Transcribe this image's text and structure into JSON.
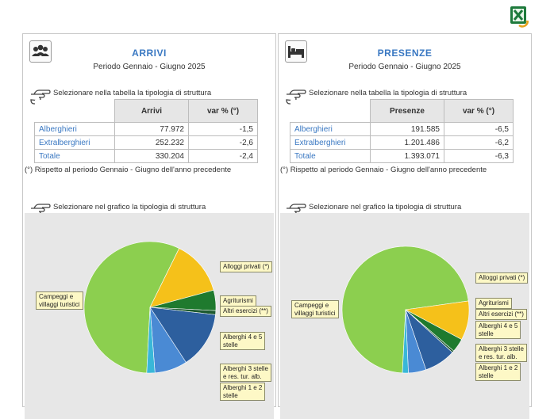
{
  "icons": {
    "export": "excel-export-icon",
    "arrivi": "people-icon",
    "presenze": "bed-icon",
    "hint": "pointing-hand-icon"
  },
  "colors": {
    "accent": "#3a78c2",
    "campeggi": "#8ccf4f",
    "alloggi": "#f5c11a",
    "agriturismi": "#1f7a2e",
    "altri": "#1d5a30",
    "alb45": "#2d5f9e",
    "alb3": "#4a8ad4",
    "alb12": "#39b7d8"
  },
  "panels": {
    "arrivi": {
      "title": "ARRIVI",
      "period": "Periodo Gennaio - Giugno 2025",
      "table_hint": "Selezionare nella tabella la tipologia di struttura",
      "headers": [
        "Arrivi",
        "var % (°)"
      ],
      "rows": [
        {
          "label": "Alberghieri",
          "value": "77.972",
          "var": "-1,5"
        },
        {
          "label": "Extralberghieri",
          "value": "252.232",
          "var": "-2,6"
        },
        {
          "label": "Totale",
          "value": "330.204",
          "var": "-2,4"
        }
      ],
      "footnote": "(°) Rispetto al periodo Gennaio - Giugno dell'anno precedente",
      "chart_hint": "Selezionare nel grafico la tipologia di struttura"
    },
    "presenze": {
      "title": "PRESENZE",
      "period": "Periodo Gennaio - Giugno 2025",
      "table_hint": "Selezionare nella tabella la tipologia di struttura",
      "headers": [
        "Presenze",
        "var % (°)"
      ],
      "rows": [
        {
          "label": "Alberghieri",
          "value": "191.585",
          "var": "-6,5"
        },
        {
          "label": "Extralberghieri",
          "value": "1.201.486",
          "var": "-6,2"
        },
        {
          "label": "Totale",
          "value": "1.393.071",
          "var": "-6,3"
        }
      ],
      "footnote": "(°) Rispetto al periodo Gennaio - Giugno dell'anno precedente",
      "chart_hint": "Selezionare nel grafico la tipologia di struttura"
    }
  },
  "chart_data": [
    {
      "type": "pie",
      "slices": [
        {
          "label": "Campeggi e villaggi turistici",
          "value": 56.5,
          "color": "#8ccf4f"
        },
        {
          "label": "Alloggi privati (*)",
          "value": 13.5,
          "color": "#f5c11a"
        },
        {
          "label": "Agriturismi",
          "value": 5.0,
          "color": "#1f7a2e"
        },
        {
          "label": "Altri esercizi (**)",
          "value": 1.0,
          "color": "#1d5a30"
        },
        {
          "label": "Alberghi 4 e 5 stelle",
          "value": 14.0,
          "color": "#2d5f9e"
        },
        {
          "label": "Alberghi 3 stelle e res. tur. alb.",
          "value": 8.0,
          "color": "#4a8ad4"
        },
        {
          "label": "Alberghi 1 e 2 stelle",
          "value": 2.0,
          "color": "#39b7d8"
        }
      ]
    },
    {
      "type": "pie",
      "slices": [
        {
          "label": "Campeggi e villaggi turistici",
          "value": 72.0,
          "color": "#8ccf4f"
        },
        {
          "label": "Alloggi privati (*)",
          "value": 10.0,
          "color": "#f5c11a"
        },
        {
          "label": "Agriturismi",
          "value": 3.5,
          "color": "#1f7a2e"
        },
        {
          "label": "Altri esercizi (**)",
          "value": 0.5,
          "color": "#1d5a30"
        },
        {
          "label": "Alberghi 4 e 5 stelle",
          "value": 8.0,
          "color": "#2d5f9e"
        },
        {
          "label": "Alberghi 3 stelle e res. tur. alb.",
          "value": 4.5,
          "color": "#4a8ad4"
        },
        {
          "label": "Alberghi 1 e 2 stelle",
          "value": 1.5,
          "color": "#39b7d8"
        }
      ]
    }
  ],
  "callouts": {
    "campeggi": [
      "Campeggi e",
      "villaggi turistici"
    ],
    "alloggi": [
      "Alloggi privati (*)"
    ],
    "agriturismi": [
      "Agriturismi"
    ],
    "altri": [
      "Altri esercizi (**)"
    ],
    "alb45": [
      "Alberghi 4 e 5",
      "stelle"
    ],
    "alb3": [
      "Alberghi 3 stelle",
      "e res. tur. alb."
    ],
    "alb12": [
      "Alberghi 1 e 2",
      "stelle"
    ]
  }
}
